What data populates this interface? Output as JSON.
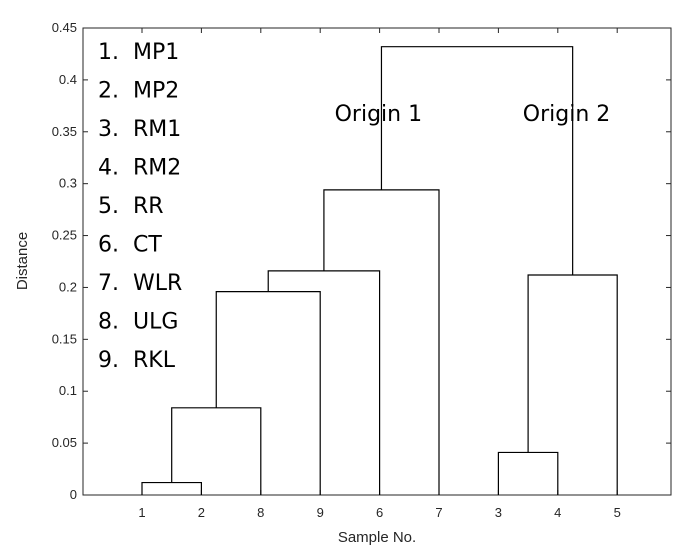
{
  "chart_data": {
    "type": "dendrogram",
    "xlabel": "Sample No.",
    "ylabel": "Distance",
    "ylim": [
      0,
      0.45
    ],
    "yticks": [
      "0",
      "0.05",
      "0.1",
      "0.15",
      "0.2",
      "0.25",
      "0.3",
      "0.35",
      "0.4",
      "0.45"
    ],
    "leaf_order": [
      "1",
      "2",
      "8",
      "9",
      "6",
      "7",
      "3",
      "4",
      "5"
    ],
    "links": [
      {
        "left": "1",
        "right": "2",
        "height": 0.012
      },
      {
        "left": "1+2",
        "right": "8",
        "height": 0.084
      },
      {
        "left": "1+2+8",
        "right": "9",
        "height": 0.196
      },
      {
        "left": "1+2+8+9",
        "right": "6",
        "height": 0.216
      },
      {
        "left": "1+2+8+9+6",
        "right": "7",
        "height": 0.294
      },
      {
        "left": "3",
        "right": "4",
        "height": 0.041
      },
      {
        "left": "3+4",
        "right": "5",
        "height": 0.212
      },
      {
        "left": "1+2+8+9+6+7",
        "right": "3+4+5",
        "height": 0.432
      }
    ],
    "legend": [
      "1.  MP1",
      "2.  MP2",
      "3.  RM1",
      "4.  RM2",
      "5.  RR",
      "6.  CT",
      "7.  WLR",
      "8.  ULG",
      "9.  RKL"
    ],
    "annotations": [
      {
        "text": "Origin 1",
        "cluster": "1+2+8+9+6+7"
      },
      {
        "text": "Origin 2",
        "cluster": "3+4+5"
      }
    ],
    "grid": false,
    "legend_placement": "top-left"
  }
}
